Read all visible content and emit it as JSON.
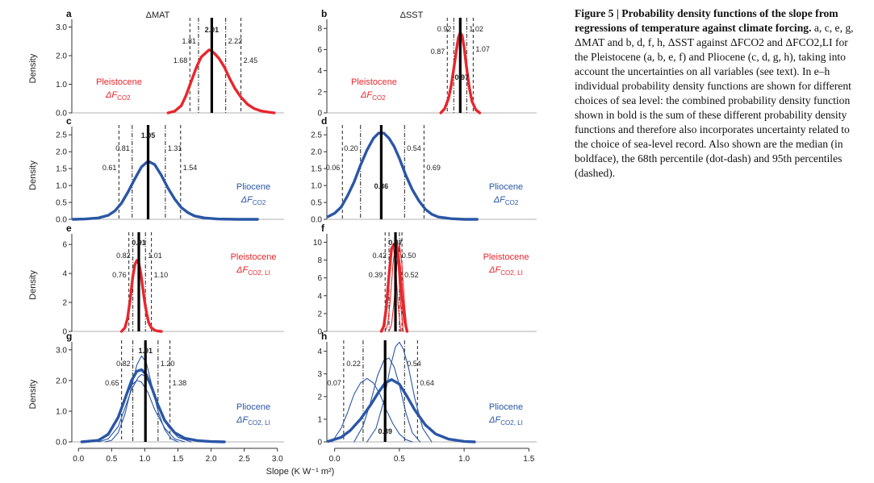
{
  "caption": {
    "title": "Figure 5 | Probability density functions of the slope from regressions of temperature against climate forcing.",
    "body": "a, c, e, g, ΔMAT and b, d, f, h, ΔSST against ΔFCO2 and ΔFCO2,LI for the Pleistocene (a, b, e, f) and Pliocene (c, d, g, h), taking into account the uncertainties on all variables (see text). In e–h individual probability density functions are shown for different choices of sea level: the combined probability density function shown in bold is the sum of these different probability density functions and therefore also incorporates uncertainty related to the choice of sea-level record. Also shown are the median (in boldface), the 68th percentile (dot-dash) and 95th percentiles (dashed)."
  },
  "axes": {
    "col_titles": [
      "ΔMAT",
      "ΔSST"
    ],
    "xlabel": "Slope (K W⁻¹ m²)",
    "ylabel": "Density",
    "xticks_left": [
      "0.0",
      "0.5",
      "1.0",
      "1.5",
      "2.0",
      "2.5",
      "3.0"
    ],
    "xticks_right": [
      "0.0",
      "0.5",
      "1.0",
      "1.5"
    ],
    "xlim_left": [
      -0.1,
      3.1
    ],
    "xlim_right": [
      -0.06,
      1.56
    ]
  },
  "colors": {
    "pleistocene": "#e8262c",
    "pliocene": "#2a56a6",
    "median": "#000000"
  },
  "chart_data": [
    {
      "panel": "a",
      "type": "line",
      "col": 0,
      "row": 0,
      "era": "pleistocene",
      "label": "Pleistocene",
      "forcing": "ΔF",
      "forcing_sub": "CO2",
      "ylim": [
        0,
        3.1
      ],
      "yticks": [
        "0.0",
        "1.0",
        "2.0",
        "3.0"
      ],
      "median": 2.01,
      "p68": [
        1.81,
        2.22
      ],
      "p95": [
        1.68,
        2.45
      ],
      "percentile_labels": [
        "1.68",
        "1.81",
        "2.01",
        "2.22",
        "2.45"
      ],
      "series": [
        {
          "x": [
            1.35,
            1.45,
            1.55,
            1.62,
            1.7,
            1.78,
            1.85,
            1.92,
            1.97,
            2.0,
            2.05,
            2.12,
            2.2,
            2.28,
            2.36,
            2.45,
            2.55,
            2.65,
            2.75,
            2.85,
            2.95
          ],
          "y": [
            0.0,
            0.06,
            0.25,
            0.6,
            1.1,
            1.6,
            1.95,
            2.1,
            2.2,
            2.18,
            2.08,
            1.9,
            1.6,
            1.2,
            0.85,
            0.55,
            0.3,
            0.15,
            0.07,
            0.03,
            0.0
          ]
        }
      ]
    },
    {
      "panel": "b",
      "type": "line",
      "col": 1,
      "row": 0,
      "era": "pleistocene",
      "label": "Pleistocene",
      "forcing": "ΔF",
      "forcing_sub": "CO2",
      "ylim": [
        0,
        8.4
      ],
      "yticks": [
        "0",
        "2",
        "4",
        "6",
        "8"
      ],
      "median": 0.97,
      "p68": [
        0.92,
        1.02
      ],
      "p95": [
        0.87,
        1.07
      ],
      "percentile_labels": [
        "0.87",
        "0.92",
        "0.97",
        "1.02",
        "1.07"
      ],
      "series": [
        {
          "x": [
            0.82,
            0.85,
            0.88,
            0.9,
            0.92,
            0.94,
            0.955,
            0.97,
            0.985,
            1.0,
            1.02,
            1.04,
            1.06,
            1.09,
            1.12
          ],
          "y": [
            0.0,
            0.4,
            1.4,
            2.6,
            4.2,
            5.9,
            7.1,
            7.6,
            7.3,
            6.2,
            4.2,
            2.4,
            1.1,
            0.3,
            0.0
          ]
        }
      ]
    },
    {
      "panel": "c",
      "type": "line",
      "col": 0,
      "row": 1,
      "era": "pliocene",
      "label": "Pliocene",
      "forcing": "ΔF",
      "forcing_sub": "CO2",
      "ylim": [
        0,
        2.6
      ],
      "yticks": [
        "0.0",
        "0.5",
        "1.0",
        "1.5",
        "2.0",
        "2.5"
      ],
      "median": 1.05,
      "p68": [
        0.81,
        1.31
      ],
      "p95": [
        0.61,
        1.54
      ],
      "percentile_labels": [
        "0.61",
        "0.81",
        "1.05",
        "1.31",
        "1.54"
      ],
      "series": [
        {
          "x": [
            -0.08,
            0.1,
            0.3,
            0.45,
            0.55,
            0.65,
            0.75,
            0.85,
            0.95,
            1.05,
            1.15,
            1.25,
            1.35,
            1.45,
            1.55,
            1.65,
            1.75,
            1.9,
            2.1,
            2.4,
            2.7
          ],
          "y": [
            0.0,
            0.01,
            0.04,
            0.12,
            0.25,
            0.48,
            0.82,
            1.2,
            1.55,
            1.72,
            1.62,
            1.3,
            0.92,
            0.6,
            0.35,
            0.2,
            0.1,
            0.04,
            0.01,
            0.0,
            0.0
          ]
        }
      ]
    },
    {
      "panel": "d",
      "type": "line",
      "col": 1,
      "row": 1,
      "era": "pliocene",
      "label": "Pliocene",
      "forcing": "ΔF",
      "forcing_sub": "CO2",
      "ylim": [
        0,
        2.6
      ],
      "yticks": [
        "0.0",
        "0.5",
        "1.0",
        "1.5",
        "2.0",
        "2.5"
      ],
      "median": 0.36,
      "p68": [
        0.2,
        0.54
      ],
      "p95": [
        0.06,
        0.69
      ],
      "percentile_labels": [
        "0.06",
        "0.20",
        "0.36",
        "0.54",
        "0.69"
      ],
      "series": [
        {
          "x": [
            -0.05,
            0.0,
            0.05,
            0.1,
            0.15,
            0.2,
            0.25,
            0.3,
            0.34,
            0.38,
            0.42,
            0.46,
            0.5,
            0.55,
            0.6,
            0.65,
            0.7,
            0.75,
            0.8,
            0.9,
            1.0,
            1.1
          ],
          "y": [
            0.08,
            0.18,
            0.36,
            0.7,
            1.1,
            1.6,
            2.05,
            2.4,
            2.55,
            2.55,
            2.4,
            2.15,
            1.8,
            1.3,
            0.88,
            0.55,
            0.3,
            0.15,
            0.07,
            0.02,
            0.0,
            0.0
          ]
        }
      ]
    },
    {
      "panel": "e",
      "type": "line",
      "col": 0,
      "row": 2,
      "era": "pleistocene",
      "label": "Pleistocene",
      "forcing": "ΔF",
      "forcing_sub": "CO2, LI",
      "ylim": [
        0,
        6.4
      ],
      "yticks": [
        "0",
        "2",
        "4",
        "6"
      ],
      "median": 0.91,
      "p68": [
        0.82,
        1.01
      ],
      "p95": [
        0.76,
        1.1
      ],
      "percentile_labels": [
        "0.76",
        "0.82",
        "0.91",
        "1.01",
        "1.10"
      ],
      "series": [
        {
          "x": [
            0.65,
            0.7,
            0.74,
            0.78,
            0.82,
            0.85,
            0.88,
            0.91,
            0.94,
            0.97,
            1.0,
            1.03,
            1.06,
            1.1,
            1.15,
            1.2,
            1.25
          ],
          "y": [
            0.0,
            0.25,
            0.9,
            2.2,
            3.8,
            4.6,
            4.9,
            4.7,
            4.0,
            3.0,
            2.0,
            1.2,
            0.6,
            0.25,
            0.08,
            0.02,
            0.0
          ]
        }
      ]
    },
    {
      "panel": "f",
      "type": "line",
      "col": 1,
      "row": 2,
      "era": "pleistocene",
      "label": "Pleistocene",
      "forcing": "ΔF",
      "forcing_sub": "CO2, LI",
      "ylim": [
        0,
        10.4
      ],
      "yticks": [
        "0",
        "2",
        "4",
        "6",
        "8",
        "10"
      ],
      "median": 0.47,
      "p68": [
        0.42,
        0.5
      ],
      "p95": [
        0.39,
        0.52
      ],
      "percentile_labels": [
        "0.39",
        "0.42",
        "0.47",
        "0.50",
        "0.52"
      ],
      "series": [
        {
          "x": [
            0.37,
            0.39,
            0.41,
            0.43,
            0.45,
            0.47,
            0.49,
            0.51
          ],
          "y": [
            0.0,
            0.8,
            3.5,
            7.5,
            9.8,
            7.5,
            3.0,
            0.0
          ]
        },
        {
          "x": [
            0.39,
            0.41,
            0.43,
            0.45,
            0.47,
            0.49,
            0.51,
            0.53
          ],
          "y": [
            0.0,
            0.8,
            3.5,
            7.5,
            9.8,
            7.5,
            3.0,
            0.0
          ]
        },
        {
          "x": [
            0.42,
            0.44,
            0.46,
            0.48,
            0.5,
            0.52,
            0.54,
            0.56
          ],
          "y": [
            0.0,
            0.8,
            3.5,
            7.5,
            9.8,
            7.5,
            3.0,
            0.0
          ]
        },
        {
          "x": [
            0.36,
            0.38,
            0.4,
            0.42,
            0.44,
            0.46,
            0.48,
            0.5,
            0.52,
            0.54,
            0.56
          ],
          "y": [
            0.0,
            0.6,
            2.8,
            6.3,
            9.3,
            9.8,
            9.6,
            7.5,
            4.0,
            1.2,
            0.0
          ]
        }
      ]
    },
    {
      "panel": "g",
      "type": "line",
      "col": 0,
      "row": 3,
      "era": "pliocene",
      "label": "Pliocene",
      "forcing": "ΔF",
      "forcing_sub": "CO2, LI",
      "ylim": [
        0,
        3.1
      ],
      "yticks": [
        "0.0",
        "1.0",
        "2.0",
        "3.0"
      ],
      "median": 1.01,
      "p68": [
        0.82,
        1.2
      ],
      "p95": [
        0.65,
        1.38
      ],
      "percentile_labels": [
        "0.65",
        "0.82",
        "1.01",
        "1.20",
        "1.38"
      ],
      "series": [
        {
          "x": [
            0.4,
            0.5,
            0.6,
            0.7,
            0.8,
            0.88,
            0.95,
            1.02,
            1.1,
            1.2,
            1.3,
            1.4,
            1.5
          ],
          "y": [
            0.0,
            0.05,
            0.3,
            0.9,
            1.8,
            2.5,
            2.8,
            2.6,
            1.9,
            1.0,
            0.4,
            0.1,
            0.0
          ]
        },
        {
          "x": [
            0.3,
            0.45,
            0.6,
            0.7,
            0.8,
            0.9,
            0.95,
            1.0,
            1.1,
            1.2,
            1.35,
            1.5,
            1.7
          ],
          "y": [
            0.0,
            0.1,
            0.5,
            1.1,
            1.7,
            2.1,
            2.2,
            2.15,
            1.8,
            1.2,
            0.5,
            0.15,
            0.0
          ]
        },
        {
          "x": [
            0.2,
            0.35,
            0.5,
            0.6,
            0.7,
            0.8,
            0.88,
            0.95,
            1.05,
            1.15,
            1.3,
            1.45,
            1.6
          ],
          "y": [
            0.0,
            0.1,
            0.4,
            0.85,
            1.4,
            1.85,
            2.0,
            1.95,
            1.6,
            1.05,
            0.45,
            0.1,
            0.0
          ]
        },
        {
          "x": [
            0.05,
            0.3,
            0.45,
            0.6,
            0.7,
            0.8,
            0.88,
            0.95,
            1.02,
            1.1,
            1.2,
            1.3,
            1.45,
            1.6,
            1.8,
            2.0,
            2.2
          ],
          "y": [
            0.0,
            0.05,
            0.25,
            0.8,
            1.4,
            2.0,
            2.3,
            2.35,
            2.2,
            1.8,
            1.2,
            0.7,
            0.3,
            0.12,
            0.04,
            0.01,
            0.0
          ]
        }
      ]
    },
    {
      "panel": "h",
      "type": "line",
      "col": 1,
      "row": 3,
      "era": "pliocene",
      "label": "Pliocene",
      "forcing": "ΔF",
      "forcing_sub": "CO2, LI",
      "ylim": [
        0,
        4.2
      ],
      "yticks": [
        "0",
        "1",
        "2",
        "3",
        "4"
      ],
      "median": 0.39,
      "p68": [
        0.22,
        0.54
      ],
      "p95": [
        0.07,
        0.64
      ],
      "percentile_labels": [
        "0.07",
        "0.22",
        "0.39",
        "0.54",
        "0.64"
      ],
      "series": [
        {
          "x": [
            -0.02,
            0.05,
            0.1,
            0.15,
            0.2,
            0.25,
            0.3,
            0.35,
            0.4,
            0.45,
            0.5,
            0.55,
            0.6
          ],
          "y": [
            0.0,
            0.6,
            1.3,
            2.1,
            2.6,
            2.8,
            2.6,
            2.1,
            1.4,
            0.8,
            0.35,
            0.1,
            0.0
          ]
        },
        {
          "x": [
            0.15,
            0.22,
            0.28,
            0.33,
            0.38,
            0.42,
            0.46,
            0.5,
            0.55,
            0.6,
            0.66
          ],
          "y": [
            0.0,
            0.7,
            1.8,
            2.9,
            3.6,
            3.7,
            3.3,
            2.5,
            1.3,
            0.4,
            0.0
          ]
        },
        {
          "x": [
            0.25,
            0.32,
            0.38,
            0.43,
            0.47,
            0.5,
            0.53,
            0.57,
            0.62,
            0.68,
            0.75
          ],
          "y": [
            0.0,
            0.6,
            1.8,
            3.3,
            4.2,
            4.4,
            4.1,
            3.3,
            1.9,
            0.6,
            0.0
          ]
        },
        {
          "x": [
            -0.05,
            0.05,
            0.12,
            0.2,
            0.28,
            0.34,
            0.39,
            0.44,
            0.5,
            0.56,
            0.62,
            0.7,
            0.78,
            0.88,
            1.0,
            1.08
          ],
          "y": [
            0.02,
            0.2,
            0.5,
            1.0,
            1.65,
            2.2,
            2.6,
            2.75,
            2.55,
            2.0,
            1.4,
            0.75,
            0.35,
            0.12,
            0.02,
            0.0
          ]
        }
      ]
    }
  ]
}
